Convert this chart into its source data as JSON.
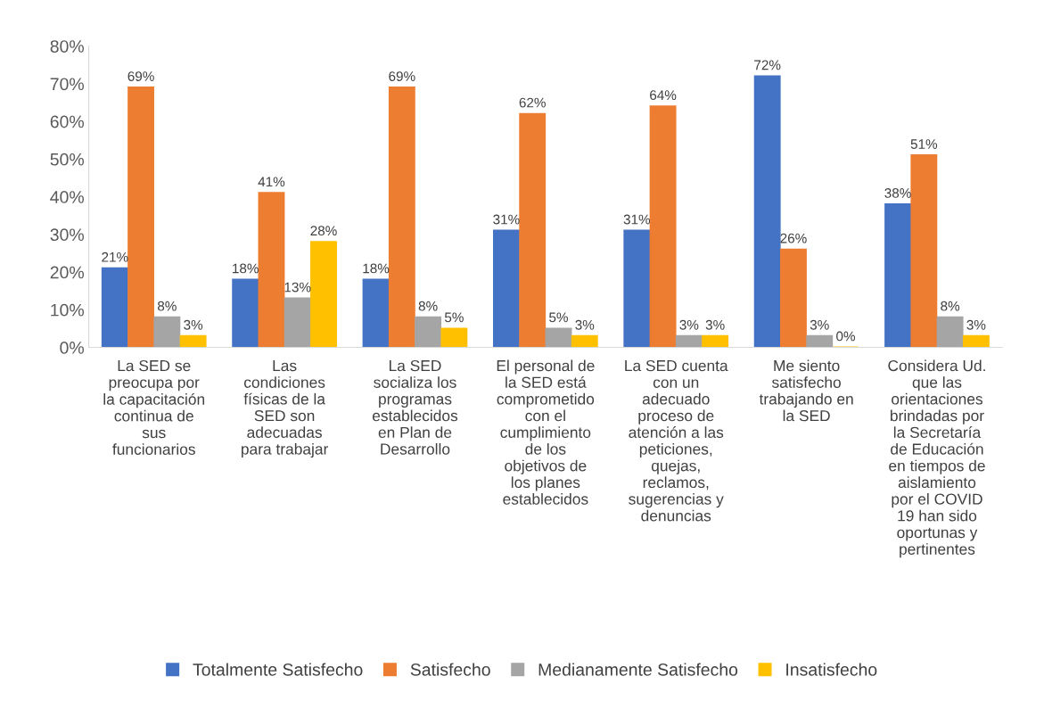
{
  "chart_data": {
    "type": "bar",
    "categories": [
      "La SED se\npreocupa por\nla capacitación\ncontinua de\nsus\nfuncionarios",
      "Las\ncondiciones\nfísicas de la\nSED son\nadecuadas\npara trabajar",
      "La SED\nsocializa los\nprogramas\nestablecidos\nen Plan de\nDesarrollo",
      "El personal de\nla SED está\ncomprometido\ncon el\ncumplimiento\nde los\nobjetivos de\nlos planes\nestablecidos",
      "La SED cuenta\ncon un\nadecuado\nproceso de\natención a las\npeticiones,\nquejas,\nreclamos,\nsugerencias y\ndenuncias",
      "Me siento\nsatisfecho\ntrabajando en\nla SED",
      "Considera Ud.\nque las\norientaciones\nbrindadas por\nla Secretaría\nde Educación\nen tiempos de\naislamiento\npor el COVID\n19 han sido\noportunas y\npertinentes"
    ],
    "series": [
      {
        "name": "Totalmente Satisfecho",
        "color": "#4472c4",
        "values": [
          21,
          18,
          18,
          31,
          31,
          72,
          38
        ],
        "value_labels": [
          "21%",
          "18%",
          "18%",
          "31%",
          "31%",
          "72%",
          "38%"
        ]
      },
      {
        "name": "Satisfecho",
        "color": "#ed7d31",
        "values": [
          69,
          41,
          69,
          62,
          64,
          26,
          51
        ],
        "value_labels": [
          "69%",
          "41%",
          "69%",
          "62%",
          "64%",
          "26%",
          "51%"
        ]
      },
      {
        "name": "Medianamente Satisfecho",
        "color": "#a5a5a5",
        "values": [
          8,
          13,
          8,
          5,
          3,
          3,
          8
        ],
        "value_labels": [
          "8%",
          "13%",
          "8%",
          "5%",
          "3%",
          "3%",
          "8%"
        ]
      },
      {
        "name": "Insatisfecho",
        "color": "#ffc000",
        "values": [
          3,
          28,
          5,
          3,
          3,
          0,
          3
        ],
        "value_labels": [
          "3%",
          "28%",
          "5%",
          "3%",
          "3%",
          "0%",
          "3%"
        ]
      }
    ],
    "ylim": [
      0,
      80
    ],
    "yticks": [
      {
        "value": 0,
        "label": "0%"
      },
      {
        "value": 10,
        "label": "10%"
      },
      {
        "value": 20,
        "label": "20%"
      },
      {
        "value": 30,
        "label": "30%"
      },
      {
        "value": 40,
        "label": "40%"
      },
      {
        "value": 50,
        "label": "50%"
      },
      {
        "value": 60,
        "label": "60%"
      },
      {
        "value": 70,
        "label": "70%"
      },
      {
        "value": 80,
        "label": "80%"
      }
    ],
    "grid": false,
    "legend": "bottom"
  }
}
